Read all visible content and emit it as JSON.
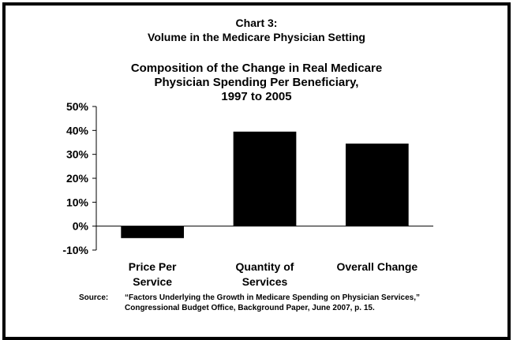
{
  "header": {
    "line1": "Chart 3:",
    "line2": "Volume in the Medicare Physician Setting"
  },
  "chart_data": {
    "type": "bar",
    "title_lines": [
      "Composition of the Change in Real Medicare",
      "Physician Spending Per Beneficiary,",
      "1997 to 2005"
    ],
    "categories": [
      [
        "Price Per",
        "Service"
      ],
      [
        "Quantity of",
        "Services"
      ],
      [
        "Overall Change"
      ]
    ],
    "values": [
      -5,
      39.5,
      34.5
    ],
    "ylim": [
      -10,
      50
    ],
    "yticks": [
      -10,
      0,
      10,
      20,
      30,
      40,
      50
    ],
    "ytick_labels": [
      "-10%",
      "0%",
      "10%",
      "20%",
      "30%",
      "40%",
      "50%"
    ],
    "bar_color": "#000000",
    "grid": false,
    "legend": "none"
  },
  "source": {
    "label": "Source:",
    "line1": "“Factors Underlying the Growth in Medicare Spending on Physician Services,”",
    "line2": "Congressional Budget Office, Background Paper, June 2007, p. 15."
  }
}
